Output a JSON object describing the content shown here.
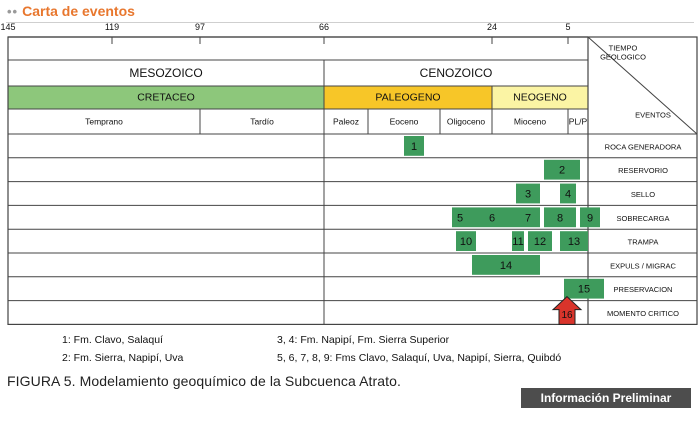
{
  "header": {
    "dots": "••",
    "title": "Carta de eventos"
  },
  "chart_data": {
    "type": "table",
    "age_axis": {
      "ticks": [
        145,
        119,
        97,
        66,
        24,
        5
      ],
      "range": [
        145,
        0
      ]
    },
    "corner": {
      "tiempo": "TIEMPO\nGEOLOGICO",
      "eventos": "EVENTOS"
    },
    "eras": [
      {
        "name": "MESOZOICO",
        "start": 145,
        "end": 66
      },
      {
        "name": "CENOZOICO",
        "start": 66,
        "end": 0
      }
    ],
    "periods": [
      {
        "name": "CRETACEO",
        "start": 145,
        "end": 66,
        "color": "#8dc77b"
      },
      {
        "name": "PALEOGENO",
        "start": 66,
        "end": 24,
        "color": "#f7c628"
      },
      {
        "name": "NEOGENO",
        "start": 24,
        "end": 0,
        "color": "#fbf4a4"
      }
    ],
    "epochs": [
      {
        "name": "Temprano",
        "start": 145,
        "end": 97
      },
      {
        "name": "Tardío",
        "start": 97,
        "end": 66
      },
      {
        "name": "Paleoz",
        "start": 66,
        "end": 55
      },
      {
        "name": "Eoceno",
        "start": 55,
        "end": 37
      },
      {
        "name": "Oligoceno",
        "start": 37,
        "end": 24
      },
      {
        "name": "Mioceno",
        "start": 24,
        "end": 5
      },
      {
        "name": "PL/P",
        "start": 5,
        "end": 0
      }
    ],
    "events": [
      "ROCA GENERADORA",
      "RESERVORIO",
      "SELLO",
      "SOBRECARGA",
      "TRAMPA",
      "EXPULS / MIGRAC",
      "PRESERVACION",
      "MOMENTO CRITICO"
    ],
    "bars": [
      {
        "row": 0,
        "start": 46,
        "end": 41,
        "label": "1"
      },
      {
        "row": 1,
        "start": 11,
        "end": 2,
        "label": "2"
      },
      {
        "row": 2,
        "start": 18,
        "end": 12,
        "label": "3"
      },
      {
        "row": 2,
        "start": 7,
        "end": 3,
        "label": "4"
      },
      {
        "row": 3,
        "start": 34,
        "end": 30,
        "label": "5"
      },
      {
        "row": 3,
        "start": 30,
        "end": 18,
        "label": "6"
      },
      {
        "row": 3,
        "start": 18,
        "end": 12,
        "label": "7"
      },
      {
        "row": 3,
        "start": 11,
        "end": 3,
        "label": "8"
      },
      {
        "row": 3,
        "start": 2,
        "end": -3,
        "label": "9"
      },
      {
        "row": 4,
        "start": 33,
        "end": 28,
        "label": "10"
      },
      {
        "row": 4,
        "start": 19,
        "end": 16,
        "label": "11"
      },
      {
        "row": 4,
        "start": 15,
        "end": 9,
        "label": "12"
      },
      {
        "row": 4,
        "start": 7,
        "end": 0,
        "label": "13"
      },
      {
        "row": 5,
        "start": 29,
        "end": 12,
        "label": "14"
      },
      {
        "row": 6,
        "start": 6,
        "end": -4,
        "label": "15"
      }
    ],
    "critical_moment": {
      "row": 7,
      "age": 5,
      "label": "16",
      "color": "#d9342b"
    },
    "bar_color": "#3e9b5c"
  },
  "legend": [
    "1:  Fm. Clavo, Salaquí",
    "2:  Fm. Sierra, Napipí, Uva",
    "3, 4:  Fm. Napipí, Fm. Sierra Superior",
    "5, 6, 7, 8, 9:   Fms Clavo, Salaquí, Uva, Napipí, Sierra, Quibdó"
  ],
  "caption": "FIGURA 5. Modelamiento geoquímico de la Subcuenca Atrato.",
  "badge": "Información Preliminar"
}
